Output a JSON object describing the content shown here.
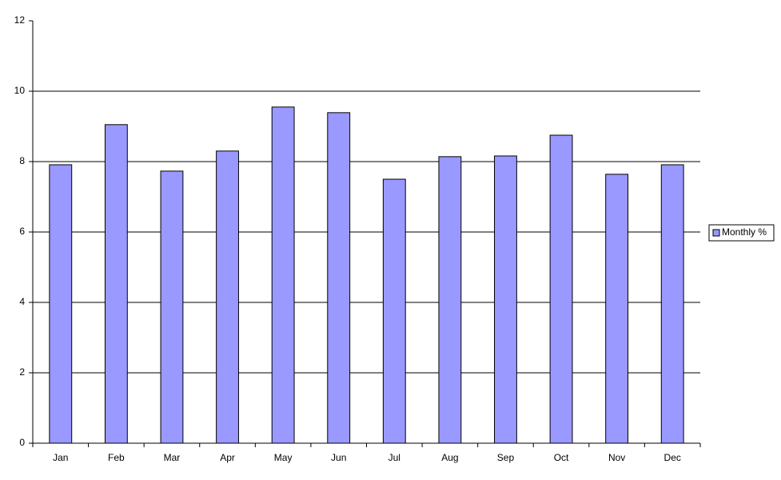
{
  "chart_data": {
    "type": "bar",
    "categories": [
      "Jan",
      "Feb",
      "Mar",
      "Apr",
      "May",
      "Jun",
      "Jul",
      "Aug",
      "Sep",
      "Oct",
      "Nov",
      "Dec"
    ],
    "series": [
      {
        "name": "Monthly %",
        "color": "#9999ff",
        "values": [
          7.91,
          9.05,
          7.73,
          8.3,
          9.55,
          9.39,
          7.5,
          8.14,
          8.16,
          8.75,
          7.64,
          7.91
        ]
      }
    ],
    "ylim": [
      0,
      12
    ],
    "yticks": [
      0,
      2,
      4,
      6,
      8,
      10,
      12
    ],
    "grid": true,
    "legend": "right"
  }
}
